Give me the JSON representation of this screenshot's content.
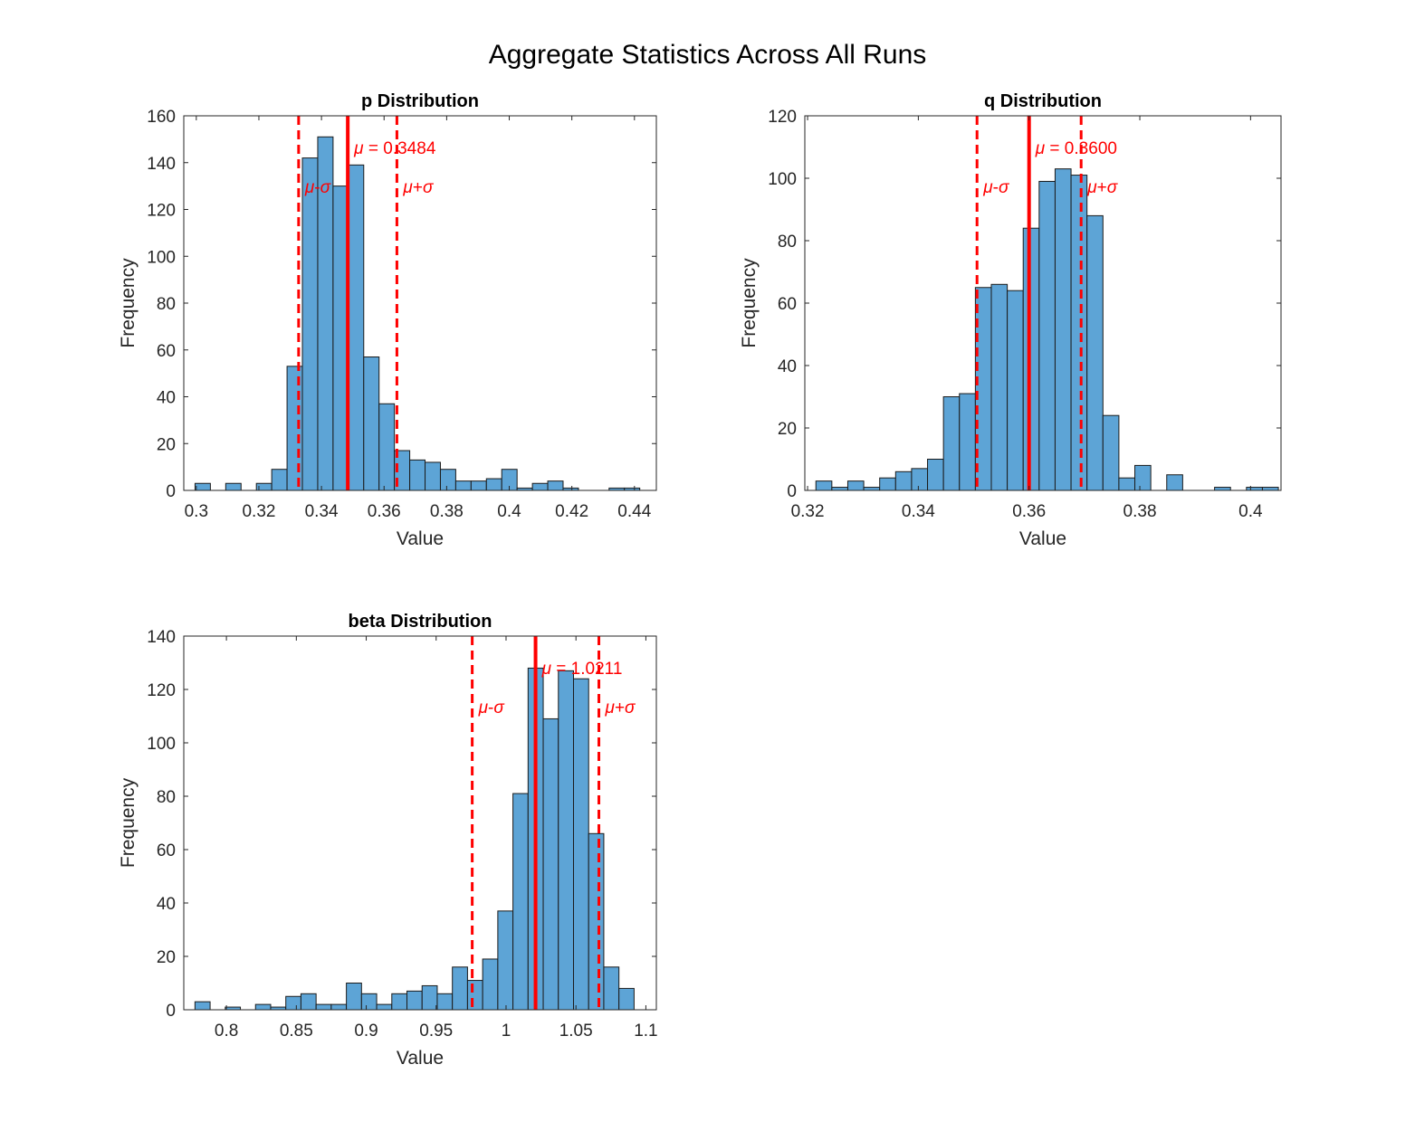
{
  "figure": {
    "title": "Aggregate Statistics Across All Runs"
  },
  "colors": {
    "bar_fill": "#5da4d6",
    "bar_edge": "#1b1b1b",
    "mean_line": "#ff0000",
    "axis": "#262626"
  },
  "chart_data": [
    {
      "type": "bar",
      "title": "p Distribution",
      "xlabel": "Value",
      "ylabel": "Frequency",
      "xlim": [
        0.296,
        0.447
      ],
      "ylim": [
        0,
        160
      ],
      "xticks": [
        0.3,
        0.32,
        0.34,
        0.36,
        0.38,
        0.4,
        0.42,
        0.44
      ],
      "xtick_labels": [
        "0.3",
        "0.32",
        "0.34",
        "0.36",
        "0.38",
        "0.4",
        "0.42",
        "0.44"
      ],
      "yticks": [
        0,
        20,
        40,
        60,
        80,
        100,
        120,
        140,
        160
      ],
      "ytick_labels": [
        "0",
        "20",
        "40",
        "60",
        "80",
        "100",
        "120",
        "140",
        "160"
      ],
      "bin_start": 0.2996,
      "bin_width": 0.0049,
      "values": [
        3,
        0,
        3,
        0,
        3,
        9,
        53,
        142,
        151,
        130,
        139,
        57,
        37,
        17,
        13,
        12,
        9,
        4,
        4,
        5,
        9,
        1,
        3,
        4,
        1,
        0,
        0,
        1,
        1
      ],
      "mean": 0.3484,
      "std": 0.0157,
      "mean_label": "μ = 0.3484",
      "minus_label": "μ-σ",
      "plus_label": "μ+σ"
    },
    {
      "type": "bar",
      "title": "q Distribution",
      "xlabel": "Value",
      "ylabel": "Frequency",
      "xlim": [
        0.3195,
        0.4055
      ],
      "ylim": [
        0,
        120
      ],
      "xticks": [
        0.32,
        0.34,
        0.36,
        0.38,
        0.4
      ],
      "xtick_labels": [
        "0.32",
        "0.34",
        "0.36",
        "0.38",
        "0.4"
      ],
      "yticks": [
        0,
        20,
        40,
        60,
        80,
        100,
        120
      ],
      "ytick_labels": [
        "0",
        "20",
        "40",
        "60",
        "80",
        "100",
        "120"
      ],
      "bin_start": 0.3215,
      "bin_width": 0.00288,
      "values": [
        3,
        1,
        3,
        1,
        4,
        6,
        7,
        10,
        30,
        31,
        65,
        66,
        64,
        84,
        99,
        103,
        101,
        88,
        24,
        4,
        8,
        0,
        5,
        0,
        0,
        1,
        0,
        1,
        1
      ],
      "mean": 0.36,
      "std": 0.0094,
      "mean_label": "μ = 0.3600",
      "minus_label": "μ-σ",
      "plus_label": "μ+σ"
    },
    {
      "type": "bar",
      "title": "beta Distribution",
      "xlabel": "Value",
      "ylabel": "Frequency",
      "xlim": [
        0.7695,
        1.1075
      ],
      "ylim": [
        0,
        140
      ],
      "xticks": [
        0.8,
        0.85,
        0.9,
        0.95,
        1.0,
        1.05,
        1.1
      ],
      "xtick_labels": [
        "0.8",
        "0.85",
        "0.9",
        "0.95",
        "1",
        "1.05",
        "1.1"
      ],
      "yticks": [
        0,
        20,
        40,
        60,
        80,
        100,
        120,
        140
      ],
      "ytick_labels": [
        "0",
        "20",
        "40",
        "60",
        "80",
        "100",
        "120",
        "140"
      ],
      "bin_start": 0.7775,
      "bin_width": 0.01083,
      "values": [
        3,
        0,
        1,
        0,
        2,
        1,
        5,
        6,
        2,
        2,
        10,
        6,
        2,
        6,
        7,
        9,
        6,
        16,
        11,
        19,
        37,
        81,
        128,
        109,
        127,
        124,
        66,
        16,
        8
      ],
      "mean": 1.0211,
      "std": 0.0453,
      "mean_label": "μ = 1.0211",
      "minus_label": "μ-σ",
      "plus_label": "μ+σ"
    }
  ]
}
